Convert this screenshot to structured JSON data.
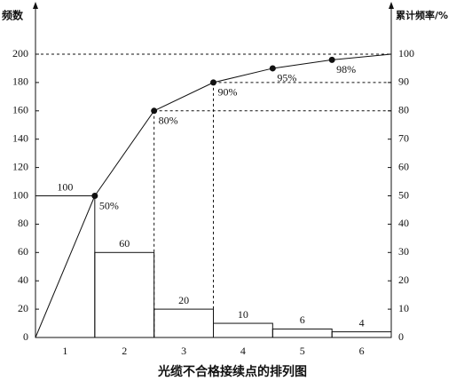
{
  "chart_data": {
    "type": "pareto",
    "title": "光缆不合格接续点的排列图",
    "y_label": "频数",
    "y2_label": "累计频率/%",
    "categories": [
      "1",
      "2",
      "3",
      "4",
      "5",
      "6"
    ],
    "values": [
      100,
      60,
      20,
      10,
      6,
      4
    ],
    "cumulative_values": [
      50,
      80,
      90,
      95,
      98,
      100
    ],
    "cumulative_value_labels": [
      "50%",
      "80%",
      "90%",
      "95%",
      "98%",
      null
    ],
    "color": "#111",
    "ylim": [
      0,
      200
    ],
    "yticks": [
      0,
      20,
      40,
      60,
      80,
      100,
      120,
      140,
      160,
      180,
      200
    ],
    "y2lim": [
      0,
      100
    ],
    "y2ticks": [
      0,
      10,
      20,
      30,
      40,
      50,
      60,
      70,
      80,
      90,
      100
    ]
  }
}
